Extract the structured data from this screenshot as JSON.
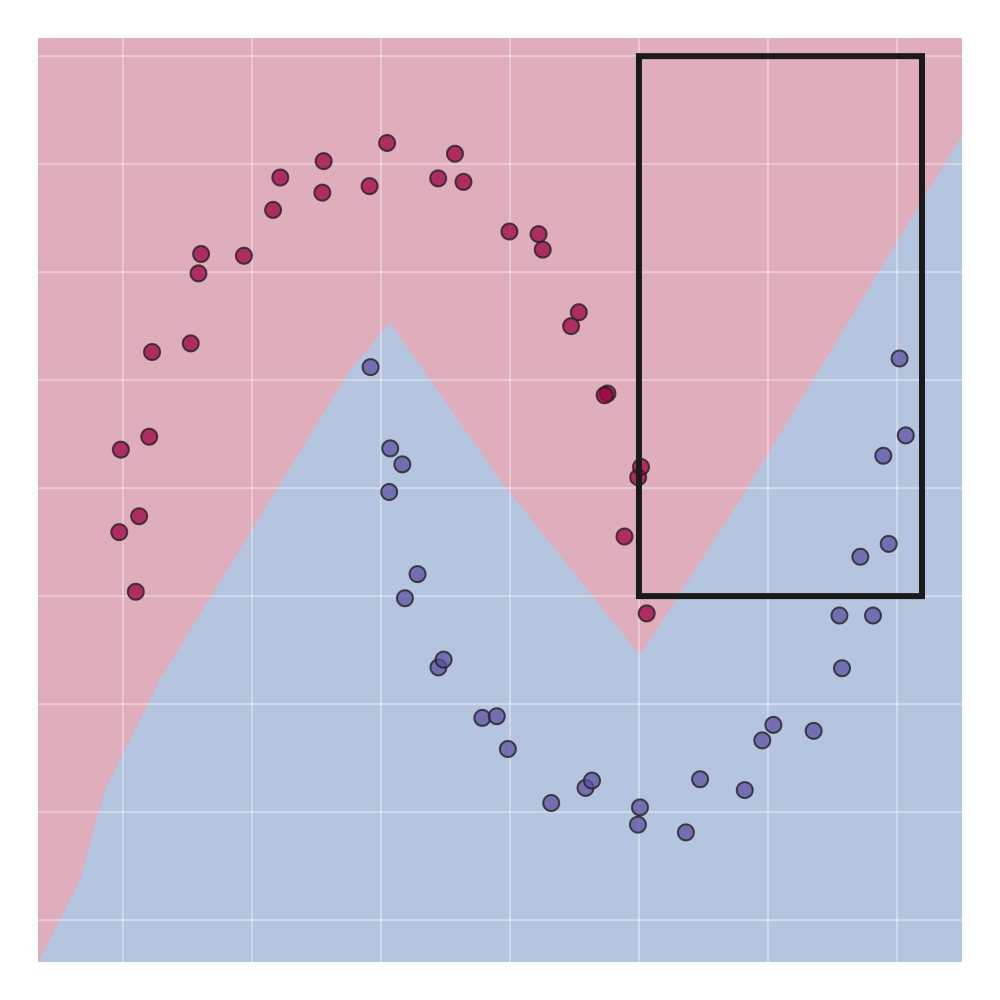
{
  "chart_data": {
    "type": "scatter",
    "xlim": [
      -1.329,
      2.252
    ],
    "ylim": [
      -0.847,
      1.292
    ],
    "xticks": [
      -1,
      -0.5,
      0,
      0.5,
      1,
      1.5,
      2
    ],
    "yticks": [
      -0.75,
      -0.5,
      -0.25,
      0,
      0.25,
      0.5,
      0.75,
      1,
      1.25
    ],
    "grid": true,
    "regions": [
      {
        "color": "#dfadbc"
      },
      {
        "color": "#b5c5df",
        "boundary": {
          "x": [
            -1.329,
            -1.244,
            -1.167,
            -1.07,
            -0.857,
            -0.12,
            0.035,
            0.461,
            1.004,
            1.391,
            2.252
          ],
          "y": [
            -0.847,
            -0.75,
            -0.657,
            -0.449,
            -0.194,
            0.523,
            0.634,
            0.269,
            -0.137,
            0.222,
            1.067
          ]
        }
      }
    ],
    "highlight_box": {
      "x": [
        1.0,
        2.097
      ],
      "y": [
        0,
        1.25
      ],
      "color": "#1a1a1a"
    },
    "series": [
      {
        "color": "#9e0142",
        "x": [
          1.03,
          0.944,
          0.997,
          1.008,
          0.878,
          0.867,
          0.737,
          0.767,
          0.627,
          0.611,
          0.498,
          0.32,
          0.287,
          0.222,
          0.024,
          -0.044,
          -0.222,
          -0.227,
          -0.39,
          -0.418,
          -0.531,
          -0.697,
          -0.707,
          -0.737,
          -0.887,
          -0.898,
          -1.008,
          -0.937,
          -1.014,
          -0.95
        ],
        "values": [
          -0.04,
          0.138,
          0.275,
          0.299,
          0.469,
          0.465,
          0.625,
          0.657,
          0.802,
          0.838,
          0.844,
          0.959,
          1.024,
          0.967,
          1.049,
          0.949,
          1.007,
          0.934,
          0.969,
          0.894,
          0.788,
          0.792,
          0.747,
          0.585,
          0.565,
          0.369,
          0.339,
          0.185,
          0.148,
          0.01
        ]
      },
      {
        "color": "#5e4fa2",
        "x": [
          -0.04,
          0.036,
          0.083,
          0.032,
          0.142,
          0.093,
          0.223,
          0.243,
          0.393,
          0.449,
          0.492,
          0.66,
          0.793,
          0.818,
          0.996,
          1.004,
          1.182,
          1.237,
          1.41,
          1.478,
          1.521,
          1.677,
          1.787,
          1.777,
          1.907,
          1.858,
          1.968,
          1.947,
          2.034,
          2.01
        ],
        "values": [
          0.53,
          0.342,
          0.305,
          0.241,
          0.051,
          -0.005,
          -0.165,
          -0.147,
          -0.282,
          -0.278,
          -0.354,
          -0.479,
          -0.444,
          -0.427,
          -0.529,
          -0.489,
          -0.547,
          -0.424,
          -0.449,
          -0.334,
          -0.298,
          -0.312,
          -0.167,
          -0.045,
          -0.045,
          0.091,
          0.121,
          0.325,
          0.372,
          0.55
        ]
      }
    ]
  }
}
